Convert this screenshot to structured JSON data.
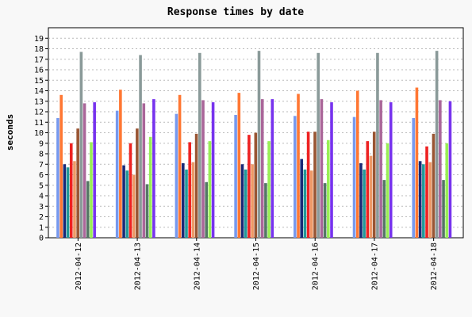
{
  "chart_data": {
    "type": "bar",
    "title": "Response times by date",
    "xlabel": "",
    "ylabel": "seconds",
    "ylim": [
      0,
      20
    ],
    "yticks": [
      0,
      1,
      2,
      3,
      4,
      5,
      6,
      7,
      8,
      9,
      10,
      11,
      12,
      13,
      14,
      15,
      16,
      17,
      18,
      19
    ],
    "grid": true,
    "categories": [
      "2012-04-12",
      "2012-04-13",
      "2012-04-14",
      "2012-04-15",
      "2012-04-16",
      "2012-04-17",
      "2012-04-18"
    ],
    "series": [
      {
        "color": "#7799ee",
        "values": [
          11.4,
          12.1,
          11.8,
          11.7,
          11.6,
          11.5,
          11.4
        ]
      },
      {
        "color": "#ff7733",
        "values": [
          13.6,
          14.1,
          13.6,
          13.8,
          13.7,
          14.0,
          14.3
        ]
      },
      {
        "color": "#1a2a77",
        "values": [
          7.0,
          6.9,
          7.1,
          7.0,
          7.5,
          7.1,
          7.3
        ]
      },
      {
        "color": "#229999",
        "values": [
          6.7,
          6.4,
          6.5,
          6.5,
          6.5,
          6.5,
          7.0
        ]
      },
      {
        "color": "#ee2222",
        "values": [
          9.0,
          9.0,
          9.1,
          9.8,
          10.1,
          9.2,
          8.7
        ]
      },
      {
        "color": "#ee9966",
        "values": [
          7.3,
          6.0,
          7.2,
          7.0,
          6.4,
          7.8,
          7.2
        ]
      },
      {
        "color": "#995533",
        "values": [
          10.4,
          10.4,
          9.9,
          10.0,
          10.1,
          10.1,
          9.9
        ]
      },
      {
        "color": "#8a9a99",
        "values": [
          17.7,
          17.4,
          17.6,
          17.8,
          17.6,
          17.6,
          17.8
        ]
      },
      {
        "color": "#aa6699",
        "values": [
          12.8,
          12.8,
          13.1,
          13.2,
          13.2,
          13.1,
          13.1
        ]
      },
      {
        "color": "#557766",
        "values": [
          5.4,
          5.1,
          5.3,
          5.2,
          5.2,
          5.5,
          5.5
        ]
      },
      {
        "color": "#99ee55",
        "values": [
          9.1,
          9.6,
          9.2,
          9.2,
          9.3,
          9.0,
          9.0
        ]
      },
      {
        "color": "#7733ee",
        "values": [
          12.9,
          13.2,
          12.9,
          13.2,
          12.9,
          12.9,
          13.0
        ]
      }
    ]
  }
}
